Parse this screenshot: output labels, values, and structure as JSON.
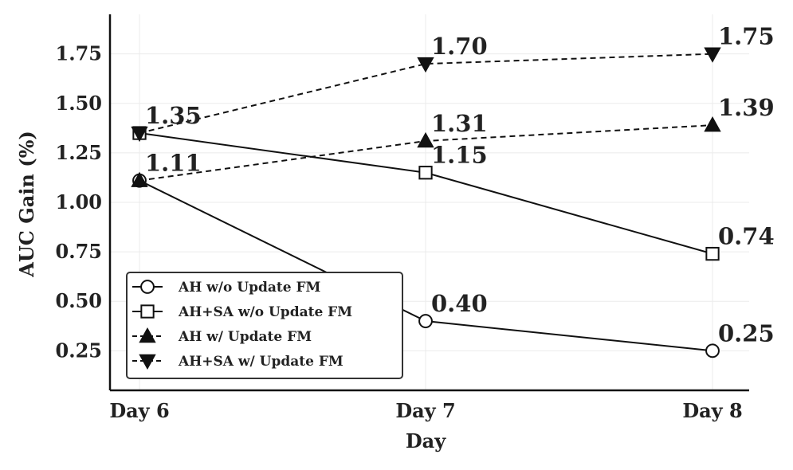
{
  "chart_data": {
    "type": "line",
    "title": "",
    "xlabel": "Day",
    "ylabel": "AUC Gain (%)",
    "categories": [
      "Day 6",
      "Day 7",
      "Day 8"
    ],
    "yticks": [
      "0.25",
      "0.50",
      "0.75",
      "1.00",
      "1.25",
      "1.50",
      "1.75"
    ],
    "ylim": [
      0.05,
      1.95
    ],
    "grid": true,
    "legend_position": "bottom-left",
    "series": [
      {
        "name": "AH w/o Update FM",
        "values": [
          1.11,
          0.4,
          0.25
        ],
        "labels": [
          "1.11",
          "0.40",
          "0.25"
        ],
        "marker": "circle",
        "line": "solid",
        "filled": false
      },
      {
        "name": "AH+SA w/o Update FM",
        "values": [
          1.35,
          1.15,
          0.74
        ],
        "labels": [
          "1.35",
          "1.15",
          "0.74"
        ],
        "marker": "square",
        "line": "solid",
        "filled": false
      },
      {
        "name": "AH w/ Update FM",
        "values": [
          1.11,
          1.31,
          1.39
        ],
        "labels": [
          "",
          "1.31",
          "1.39"
        ],
        "marker": "triangle-up",
        "line": "dashed",
        "filled": true
      },
      {
        "name": "AH+SA w/ Update FM",
        "values": [
          1.35,
          1.7,
          1.75
        ],
        "labels": [
          "",
          "1.70",
          "1.75"
        ],
        "marker": "triangle-down",
        "line": "dashed",
        "filled": true
      }
    ],
    "colors": {
      "line": "#111111",
      "text": "#222222",
      "grid": "#ebebeb"
    }
  }
}
